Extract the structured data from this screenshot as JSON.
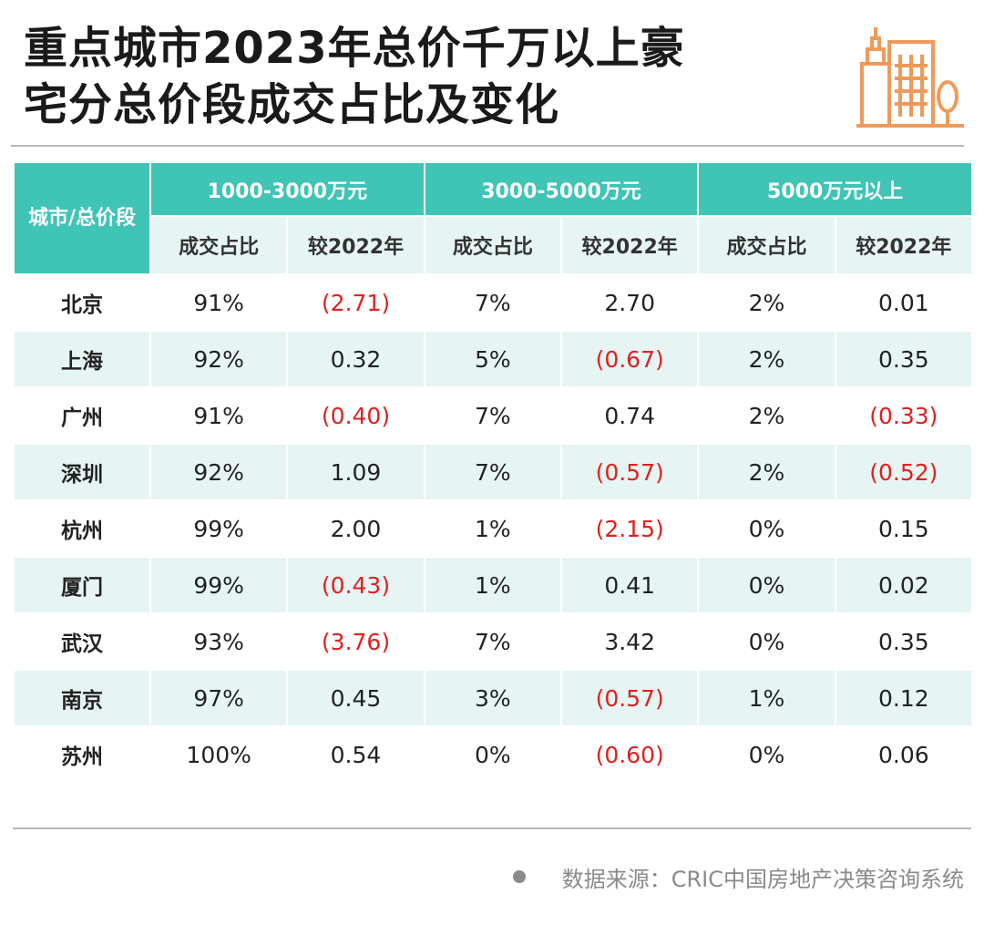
{
  "title_lines": [
    "重点城市2023年总价千万以上豪",
    "宅分总价段成交占比及变化"
  ],
  "logo_icon": "city-buildings-icon",
  "accent_color": "#3fc4b6",
  "negative_color": "#e0201e",
  "table": {
    "city_header": "城市/总价段",
    "groups": [
      "1000-3000万元",
      "3000-5000万元",
      "5000万元以上"
    ],
    "subheaders": [
      "成交占比",
      "较2022年"
    ],
    "rows": [
      {
        "city": "北京",
        "cells": [
          "91%",
          "(2.71)",
          "7%",
          "2.70",
          "2%",
          "0.01"
        ]
      },
      {
        "city": "上海",
        "cells": [
          "92%",
          "0.32",
          "5%",
          "(0.67)",
          "2%",
          "0.35"
        ]
      },
      {
        "city": "广州",
        "cells": [
          "91%",
          "(0.40)",
          "7%",
          "0.74",
          "2%",
          "(0.33)"
        ]
      },
      {
        "city": "深圳",
        "cells": [
          "92%",
          "1.09",
          "7%",
          "(0.57)",
          "2%",
          "(0.52)"
        ]
      },
      {
        "city": "杭州",
        "cells": [
          "99%",
          "2.00",
          "1%",
          "(2.15)",
          "0%",
          "0.15"
        ]
      },
      {
        "city": "厦门",
        "cells": [
          "99%",
          "(0.43)",
          "1%",
          "0.41",
          "0%",
          "0.02"
        ]
      },
      {
        "city": "武汉",
        "cells": [
          "93%",
          "(3.76)",
          "7%",
          "3.42",
          "0%",
          "0.35"
        ]
      },
      {
        "city": "南京",
        "cells": [
          "97%",
          "0.45",
          "3%",
          "(0.57)",
          "1%",
          "0.12"
        ]
      },
      {
        "city": "苏州",
        "cells": [
          "100%",
          "0.54",
          "0%",
          "(0.60)",
          "0%",
          "0.06"
        ]
      }
    ]
  },
  "source": "数据来源：CRIC中国房地产决策咨询系统"
}
